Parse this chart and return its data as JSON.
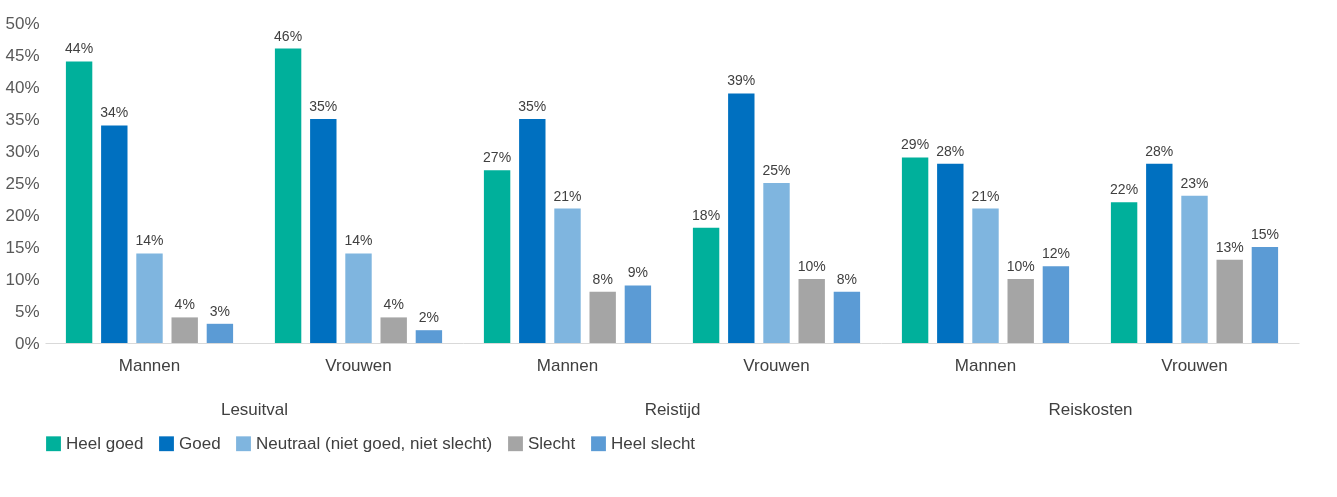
{
  "chart_data": {
    "type": "bar",
    "categories": [
      "Mannen",
      "Vrouwen",
      "Mannen",
      "Vrouwen",
      "Mannen",
      "Vrouwen"
    ],
    "annotations": [
      "Lesuitval",
      "Reistijd",
      "Reiskosten"
    ],
    "series": [
      {
        "name": "Heel goed",
        "color": "#00b09b",
        "values": [
          44,
          46,
          27,
          18,
          29,
          22
        ],
        "value_labels": [
          "44%",
          "46%",
          "27%",
          "18%",
          "29%",
          "22%"
        ]
      },
      {
        "name": "Goed",
        "color": "#0070c0",
        "values": [
          34,
          35,
          35,
          39,
          28,
          28
        ],
        "value_labels": [
          "34%",
          "35%",
          "35%",
          "39%",
          "28%",
          "28%"
        ]
      },
      {
        "name": "Neutraal (niet goed, niet slecht)",
        "color": "#7fb5df",
        "values": [
          14,
          14,
          21,
          25,
          21,
          23
        ],
        "value_labels": [
          "14%",
          "14%",
          "21%",
          "25%",
          "21%",
          "23%"
        ]
      },
      {
        "name": "Slecht",
        "color": "#a5a5a5",
        "values": [
          4,
          4,
          8,
          10,
          10,
          13
        ],
        "value_labels": [
          "4%",
          "4%",
          "8%",
          "10%",
          "10%",
          "13%"
        ]
      },
      {
        "name": "Heel slecht",
        "color": "#5b9bd5",
        "values": [
          3,
          2,
          9,
          8,
          12,
          15
        ],
        "value_labels": [
          "3%",
          "2%",
          "9%",
          "8%",
          "12%",
          "15%"
        ]
      }
    ],
    "ylim": [
      0,
      50
    ],
    "yticks": [
      {
        "value": 0,
        "label": "0%"
      },
      {
        "value": 5,
        "label": "5%"
      },
      {
        "value": 10,
        "label": "10%"
      },
      {
        "value": 15,
        "label": "15%"
      },
      {
        "value": 20,
        "label": "20%"
      },
      {
        "value": 25,
        "label": "25%"
      },
      {
        "value": 30,
        "label": "30%"
      },
      {
        "value": 35,
        "label": "35%"
      },
      {
        "value": 40,
        "label": "40%"
      },
      {
        "value": 45,
        "label": "45%"
      },
      {
        "value": 50,
        "label": "50%"
      }
    ],
    "legend": "bottom",
    "grid": false
  }
}
